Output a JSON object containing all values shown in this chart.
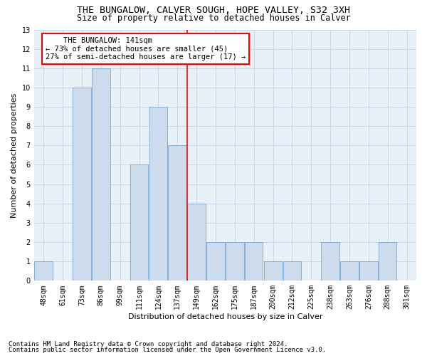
{
  "title1": "THE BUNGALOW, CALVER SOUGH, HOPE VALLEY, S32 3XH",
  "title2": "Size of property relative to detached houses in Calver",
  "xlabel": "Distribution of detached houses by size in Calver",
  "ylabel": "Number of detached properties",
  "categories": [
    "48sqm",
    "61sqm",
    "73sqm",
    "86sqm",
    "99sqm",
    "111sqm",
    "124sqm",
    "137sqm",
    "149sqm",
    "162sqm",
    "175sqm",
    "187sqm",
    "200sqm",
    "212sqm",
    "225sqm",
    "238sqm",
    "263sqm",
    "276sqm",
    "288sqm",
    "301sqm"
  ],
  "values": [
    1,
    0,
    10,
    11,
    0,
    6,
    9,
    7,
    4,
    2,
    2,
    2,
    1,
    1,
    0,
    2,
    1,
    1,
    2,
    0
  ],
  "bar_color": "#cddcec",
  "bar_edge_color": "#6699cc",
  "annotation_text": "    THE BUNGALOW: 141sqm    \n← 73% of detached houses are smaller (45)\n27% of semi-detached houses are larger (17) →",
  "annotation_box_color": "white",
  "annotation_box_edge_color": "red",
  "vline_x_index": 7.5,
  "vline_color": "red",
  "ylim": [
    0,
    13
  ],
  "yticks": [
    0,
    1,
    2,
    3,
    4,
    5,
    6,
    7,
    8,
    9,
    10,
    11,
    12,
    13
  ],
  "grid_color": "#c5d8ea",
  "bg_color": "#e8f0f8",
  "footer1": "Contains HM Land Registry data © Crown copyright and database right 2024.",
  "footer2": "Contains public sector information licensed under the Open Government Licence v3.0.",
  "title1_fontsize": 9.5,
  "title2_fontsize": 8.5,
  "annotation_fontsize": 7.5,
  "axis_label_fontsize": 8,
  "tick_fontsize": 7,
  "footer_fontsize": 6.5
}
